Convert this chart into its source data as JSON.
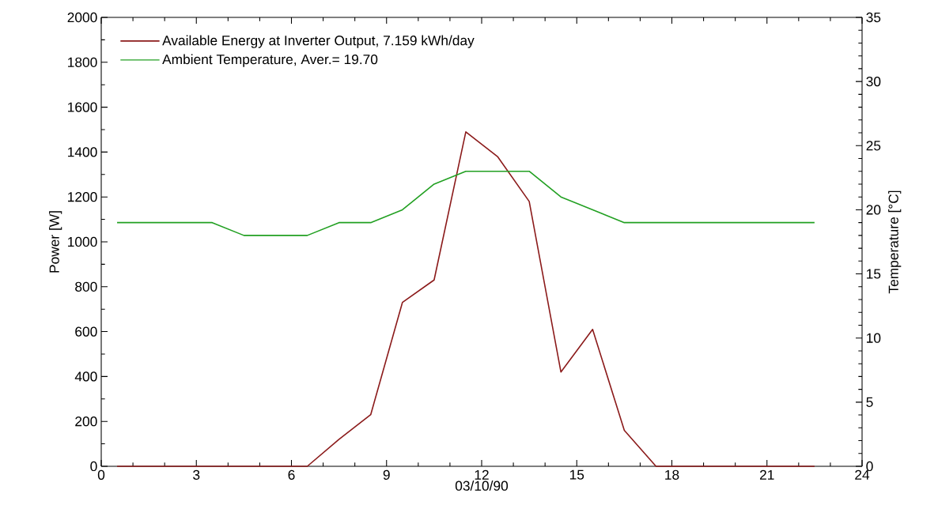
{
  "chart_data": {
    "type": "line",
    "xlabel": "03/10/90",
    "ylabel": "Power [W]",
    "y2label": "Temperature  [°C]",
    "x": [
      0.5,
      1.5,
      2.5,
      3.5,
      4.5,
      5.5,
      6.5,
      7.5,
      8.5,
      9.5,
      10.5,
      11.5,
      12.5,
      13.5,
      14.5,
      15.5,
      16.5,
      17.5,
      18.5,
      19.5,
      20.5,
      21.5,
      22.5
    ],
    "series": [
      {
        "name": "Available Energy at Inverter Output,  7.159 kWh/day",
        "color": "#8b1a1a",
        "values": [
          0,
          0,
          0,
          0,
          0,
          0,
          0,
          120,
          230,
          730,
          830,
          1490,
          1380,
          1180,
          420,
          610,
          160,
          0,
          0,
          0,
          0,
          0,
          0
        ]
      },
      {
        "name": "Ambient Temperature,  Aver.= 19.70",
        "color": "#22a022",
        "axis": "y2",
        "values": [
          19,
          19,
          19,
          19,
          18,
          18,
          18,
          19,
          19,
          20,
          22,
          23,
          23,
          23,
          21,
          20,
          19,
          19,
          19,
          19,
          19,
          19,
          19
        ]
      }
    ],
    "xlim": [
      0,
      24
    ],
    "xticks": [
      0,
      3,
      6,
      9,
      12,
      15,
      18,
      21,
      24
    ],
    "ylim": [
      0,
      2000
    ],
    "yticks": [
      0,
      200,
      400,
      600,
      800,
      1000,
      1200,
      1400,
      1600,
      1800,
      2000
    ],
    "y2lim": [
      0,
      35
    ],
    "y2ticks": [
      0,
      5,
      10,
      15,
      20,
      25,
      30,
      35
    ],
    "legend": "top left",
    "grid": false,
    "marker": "none",
    "line_style": "solid"
  }
}
